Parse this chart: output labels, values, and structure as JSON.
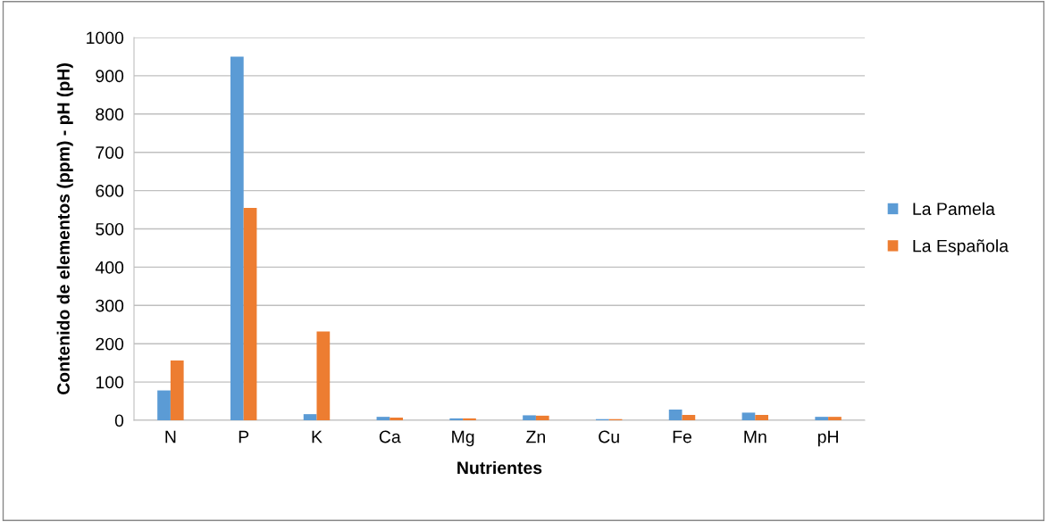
{
  "chart_data": {
    "type": "bar",
    "xlabel": "Nutrientes",
    "ylabel": "Contenido de elementos (ppm) - pH (pH)",
    "categories": [
      "N",
      "P",
      "K",
      "Ca",
      "Mg",
      "Zn",
      "Cu",
      "Fe",
      "Mn",
      "pH"
    ],
    "series": [
      {
        "name": "La Pamela",
        "color": "#5b9bd5",
        "values": [
          78,
          950,
          16,
          9,
          5,
          13,
          3,
          28,
          20,
          9
        ]
      },
      {
        "name": "La Española",
        "color": "#ed7d31",
        "values": [
          156,
          555,
          232,
          7,
          5,
          12,
          3,
          14,
          14,
          9
        ]
      }
    ],
    "ylim": [
      0,
      1000
    ],
    "yticks": [
      0,
      100,
      200,
      300,
      400,
      500,
      600,
      700,
      800,
      900,
      1000
    ],
    "grid": "y",
    "legend": "right"
  }
}
